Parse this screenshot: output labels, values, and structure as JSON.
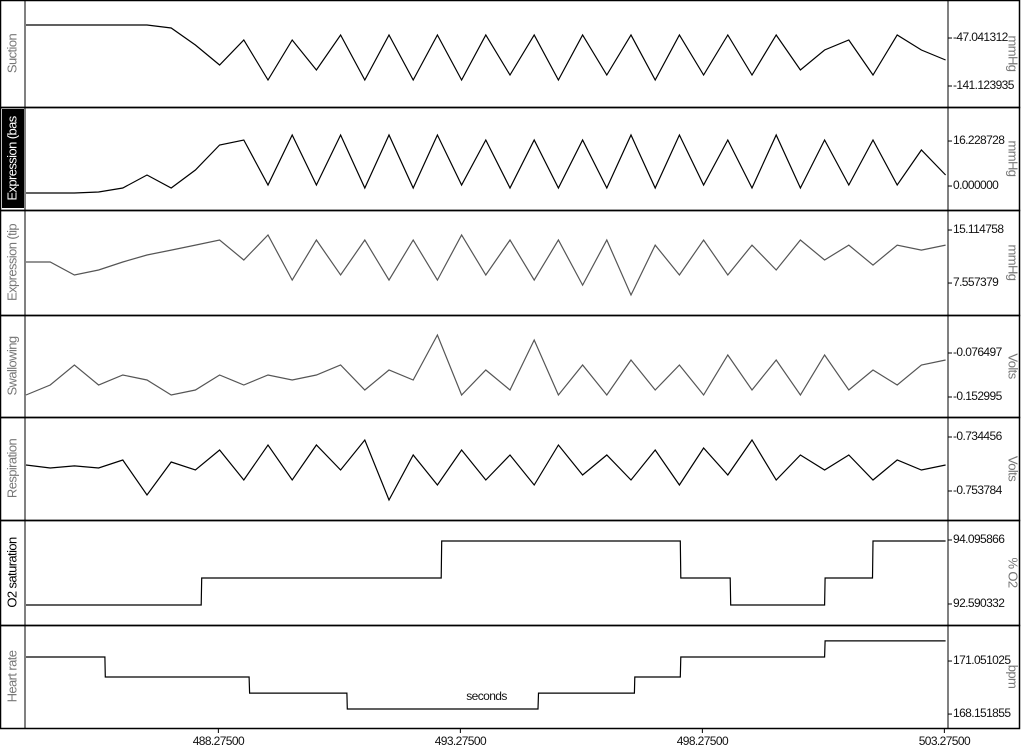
{
  "chart_data": [
    {
      "type": "line",
      "label": "Suction",
      "unit": "mmHg",
      "color": "#000000",
      "xlim": [
        484.28,
        503.35
      ],
      "ylim": [
        -182.3,
        27.5
      ],
      "yticks": [
        -47.041312,
        -141.123935
      ],
      "x": [
        484.3,
        484.8,
        485.3,
        485.8,
        486.3,
        486.8,
        487.3,
        487.8,
        488.3,
        488.8,
        489.3,
        489.8,
        490.3,
        490.8,
        491.3,
        491.8,
        492.3,
        492.8,
        493.3,
        493.8,
        494.3,
        494.8,
        495.3,
        495.8,
        496.3,
        496.8,
        497.3,
        497.8,
        498.3,
        498.8,
        499.3,
        499.8,
        500.3,
        500.8,
        501.3,
        501.8,
        502.3,
        502.8,
        503.3
      ],
      "values": [
        -21.6,
        -21.6,
        -21.6,
        -21.6,
        -21.6,
        -21.6,
        -27.4,
        -60.8,
        -100.0,
        -51.0,
        -129.4,
        -51.0,
        -109.8,
        -41.2,
        -129.4,
        -41.2,
        -129.4,
        -41.2,
        -129.4,
        -41.2,
        -119.6,
        -41.2,
        -129.4,
        -41.2,
        -119.6,
        -41.2,
        -129.4,
        -41.2,
        -119.6,
        -41.2,
        -119.6,
        -41.2,
        -109.8,
        -70.6,
        -51.0,
        -119.6,
        -41.2,
        -70.6,
        -90.2
      ]
    },
    {
      "type": "line",
      "label": "Expression (bas",
      "unit": "mmHg",
      "color": "#000000",
      "xlim": [
        484.28,
        503.35
      ],
      "ylim": [
        -8.65,
        28.5
      ],
      "yticks": [
        16.228728,
        {
          "value": 0,
          "label": "0.000000"
        }
      ],
      "x": [
        484.3,
        484.8,
        485.3,
        485.8,
        486.3,
        486.8,
        487.3,
        487.8,
        488.3,
        488.8,
        489.3,
        489.8,
        490.3,
        490.8,
        491.3,
        491.8,
        492.3,
        492.8,
        493.3,
        493.8,
        494.3,
        494.8,
        495.3,
        495.8,
        496.3,
        496.8,
        497.3,
        497.8,
        498.3,
        498.8,
        499.3,
        499.8,
        500.3,
        500.8,
        501.3,
        501.8,
        502.3,
        502.8,
        503.3
      ],
      "values": [
        -2.52,
        -2.52,
        -2.52,
        -2.16,
        -0.72,
        3.97,
        -0.72,
        5.77,
        14.79,
        16.59,
        0.36,
        18.39,
        0.36,
        18.39,
        -0.72,
        18.39,
        -0.72,
        18.39,
        0.36,
        16.59,
        -0.72,
        16.59,
        -0.72,
        16.59,
        -0.72,
        18.39,
        -0.72,
        18.39,
        0.36,
        16.59,
        -0.72,
        18.39,
        -0.72,
        16.59,
        0.36,
        16.59,
        0.36,
        12.98,
        3.97
      ]
    },
    {
      "type": "line",
      "label": "Expression (tip",
      "unit": "mmHg",
      "color": "#555555",
      "xlim": [
        484.28,
        503.35
      ],
      "ylim": [
        3.0,
        17.97
      ],
      "yticks": [
        15.114758,
        7.557379
      ],
      "x": [
        484.3,
        484.8,
        485.3,
        485.8,
        486.3,
        486.8,
        487.3,
        487.8,
        488.3,
        488.8,
        489.3,
        489.8,
        490.3,
        490.8,
        491.3,
        491.8,
        492.3,
        492.8,
        493.3,
        493.8,
        494.3,
        494.8,
        495.3,
        495.8,
        496.3,
        496.8,
        497.3,
        497.8,
        498.3,
        498.8,
        499.3,
        499.8,
        500.3,
        500.8,
        501.3,
        501.8,
        502.3,
        502.8,
        503.3
      ],
      "values": [
        10.55,
        10.55,
        8.7,
        9.41,
        10.55,
        11.55,
        12.26,
        12.97,
        13.69,
        10.84,
        14.4,
        7.98,
        13.69,
        8.7,
        13.69,
        7.98,
        13.69,
        7.98,
        14.4,
        8.7,
        13.69,
        7.98,
        13.69,
        7.27,
        13.69,
        5.85,
        12.97,
        8.7,
        13.69,
        8.7,
        12.97,
        9.41,
        13.69,
        10.84,
        12.97,
        10.12,
        12.97,
        12.26,
        12.97
      ]
    },
    {
      "type": "line",
      "label": "Swallowing",
      "unit": "Volts",
      "color": "#555555",
      "xlim": [
        484.28,
        503.35
      ],
      "ylim": [
        -0.1878,
        -0.0104
      ],
      "yticks": [
        -0.076497,
        -0.152995
      ],
      "x": [
        484.3,
        484.8,
        485.3,
        485.8,
        486.3,
        486.8,
        487.3,
        487.8,
        488.3,
        488.8,
        489.3,
        489.8,
        490.3,
        490.8,
        491.3,
        491.8,
        492.3,
        492.8,
        493.3,
        493.8,
        494.3,
        494.8,
        495.3,
        495.8,
        496.3,
        496.8,
        497.3,
        497.8,
        498.3,
        498.8,
        499.3,
        499.8,
        500.3,
        500.8,
        501.3,
        501.8,
        502.3,
        502.8,
        503.3
      ],
      "values": [
        -0.1495,
        -0.1321,
        -0.0974,
        -0.1321,
        -0.1147,
        -0.1234,
        -0.1495,
        -0.1408,
        -0.1147,
        -0.1321,
        -0.1147,
        -0.1234,
        -0.1147,
        -0.0974,
        -0.1408,
        -0.1061,
        -0.1234,
        -0.0452,
        -0.1495,
        -0.1061,
        -0.1408,
        -0.0539,
        -0.1495,
        -0.0974,
        -0.1495,
        -0.0887,
        -0.1408,
        -0.0974,
        -0.1495,
        -0.08,
        -0.1408,
        -0.0887,
        -0.1495,
        -0.08,
        -0.1408,
        -0.1061,
        -0.1321,
        -0.0974,
        -0.0887
      ]
    },
    {
      "type": "line",
      "label": "Respiration",
      "unit": "Volts",
      "color": "#000000",
      "xlim": [
        484.28,
        503.35
      ],
      "ylim": [
        -0.76416,
        -0.7273
      ],
      "yticks": [
        -0.734456,
        -0.753784
      ],
      "x": [
        484.3,
        484.8,
        485.3,
        485.8,
        486.3,
        486.8,
        487.3,
        487.8,
        488.3,
        488.8,
        489.3,
        489.8,
        490.3,
        490.8,
        491.3,
        491.8,
        492.3,
        492.8,
        493.3,
        493.8,
        494.3,
        494.8,
        495.3,
        495.8,
        496.3,
        496.8,
        497.3,
        497.8,
        498.3,
        498.8,
        499.3,
        499.8,
        500.3,
        500.8,
        501.3,
        501.8,
        502.3,
        502.8,
        503.3
      ],
      "values": [
        -0.74448,
        -0.74555,
        -0.74481,
        -0.74555,
        -0.74269,
        -0.75521,
        -0.7434,
        -0.74627,
        -0.73911,
        -0.74985,
        -0.73732,
        -0.74985,
        -0.73732,
        -0.74627,
        -0.73553,
        -0.757,
        -0.7409,
        -0.75163,
        -0.73911,
        -0.74985,
        -0.7409,
        -0.75163,
        -0.73732,
        -0.74806,
        -0.7409,
        -0.74985,
        -0.73911,
        -0.75163,
        -0.73839,
        -0.74806,
        -0.73553,
        -0.74985,
        -0.7409,
        -0.74627,
        -0.7409,
        -0.74985,
        -0.74269,
        -0.74627,
        -0.74448
      ]
    },
    {
      "type": "line",
      "label": "O2 saturation",
      "unit": "% O2",
      "color": "#000000",
      "xlim": [
        484.28,
        503.35
      ],
      "ylim": [
        92.096,
        94.566
      ],
      "yticks": [
        94.095866,
        92.590332
      ],
      "x": [
        484.3,
        487.92,
        487.93,
        492.88,
        492.89,
        497.82,
        497.83,
        498.85,
        498.86,
        500.8,
        500.81,
        501.79,
        501.8,
        503.3
      ],
      "values": [
        92.567,
        92.567,
        93.202,
        93.202,
        94.072,
        94.072,
        93.202,
        93.202,
        92.567,
        92.567,
        93.202,
        93.202,
        94.072,
        94.072
      ]
    },
    {
      "type": "line",
      "label": "Heart rate",
      "unit": "bpm",
      "color": "#000000",
      "xlim": [
        484.28,
        503.35
      ],
      "ylim": [
        167.39,
        173.02
      ],
      "yticks": [
        171.051025,
        168.151855
      ],
      "xlabel": "seconds",
      "xticks": [
        {
          "value": 488.275,
          "label": "488.27500"
        },
        {
          "value": 493.275,
          "label": "493.27500"
        },
        {
          "value": 498.275,
          "label": "498.27500"
        },
        {
          "value": 503.275,
          "label": "503.27500"
        }
      ],
      "x": [
        484.3,
        485.93,
        485.94,
        488.91,
        488.92,
        490.93,
        490.94,
        494.88,
        494.89,
        496.87,
        496.88,
        497.82,
        497.83,
        500.8,
        500.81,
        503.3
      ],
      "values": [
        171.27,
        171.27,
        170.18,
        170.18,
        169.3,
        169.3,
        168.43,
        168.43,
        169.3,
        169.3,
        170.18,
        170.18,
        171.27,
        171.27,
        172.15,
        172.15
      ]
    }
  ]
}
